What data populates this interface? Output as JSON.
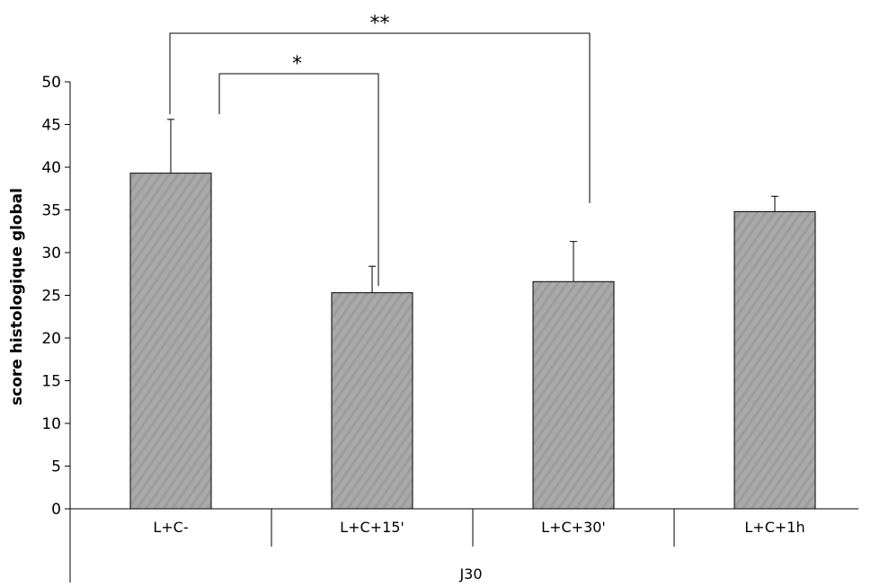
{
  "chart_data": {
    "type": "bar",
    "categories": [
      "L+C-",
      "L+C+15'",
      "L+C+30'",
      "L+C+1h"
    ],
    "values": [
      39.3,
      25.3,
      26.6,
      34.8
    ],
    "errors": [
      6.3,
      3.1,
      4.7,
      1.8
    ],
    "group_label": "J30",
    "title": "",
    "xlabel": "",
    "ylabel": "score histologique global",
    "ylim": [
      0,
      50
    ],
    "yticks": [
      0,
      5,
      10,
      15,
      20,
      25,
      30,
      35,
      40,
      45,
      50
    ],
    "grid": false,
    "bar_color": "#a8a8a8",
    "significance": [
      {
        "from": "L+C-",
        "to": "L+C+15'",
        "label": "*"
      },
      {
        "from": "L+C-",
        "to": "L+C+30'",
        "label": "**"
      }
    ]
  }
}
